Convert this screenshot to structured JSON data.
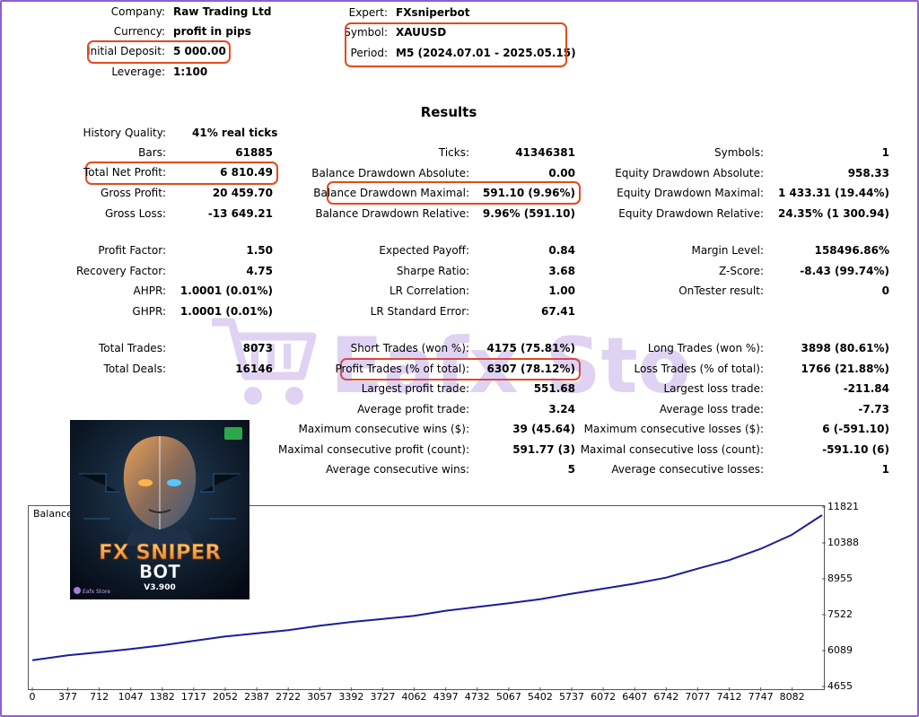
{
  "header": {
    "company_label": "Company:",
    "company": "Raw Trading Ltd",
    "currency_label": "Currency:",
    "currency": "profit in pips",
    "deposit_label": "Initial Deposit:",
    "deposit": "5 000.00",
    "leverage_label": "Leverage:",
    "leverage": "1:100",
    "expert_label": "Expert:",
    "expert": "FXsniperbot",
    "symbol_label": "Symbol:",
    "symbol": "XAUUSD",
    "period_label": "Period:",
    "period": "M5 (2024.07.01 - 2025.05.15)"
  },
  "results_title": "Results",
  "col1": [
    {
      "label": "History Quality:",
      "value": "41% real ticks"
    },
    {
      "label": "Bars:",
      "value": "61885"
    },
    {
      "label": "Total Net Profit:",
      "value": "6 810.49"
    },
    {
      "label": "Gross Profit:",
      "value": "20 459.70"
    },
    {
      "label": "Gross Loss:",
      "value": "-13 649.21"
    },
    {
      "label": "Profit Factor:",
      "value": "1.50"
    },
    {
      "label": "Recovery Factor:",
      "value": "4.75"
    },
    {
      "label": "AHPR:",
      "value": "1.0001 (0.01%)"
    },
    {
      "label": "GHPR:",
      "value": "1.0001 (0.01%)"
    },
    {
      "label": "Total Trades:",
      "value": "8073"
    },
    {
      "label": "Total Deals:",
      "value": "16146"
    }
  ],
  "col2": [
    {
      "label": "Ticks:",
      "value": "41346381"
    },
    {
      "label": "Balance Drawdown Absolute:",
      "value": "0.00"
    },
    {
      "label": "Balance Drawdown Maximal:",
      "value": "591.10 (9.96%)"
    },
    {
      "label": "Balance Drawdown Relative:",
      "value": "9.96% (591.10)"
    },
    {
      "label": "Expected Payoff:",
      "value": "0.84"
    },
    {
      "label": "Sharpe Ratio:",
      "value": "3.68"
    },
    {
      "label": "LR Correlation:",
      "value": "1.00"
    },
    {
      "label": "LR Standard Error:",
      "value": "67.41"
    },
    {
      "label": "Short Trades (won %):",
      "value": "4175 (75.81%)"
    },
    {
      "label": "Profit Trades (% of total):",
      "value": "6307 (78.12%)"
    },
    {
      "label": "Largest profit trade:",
      "value": "551.68"
    },
    {
      "label": "Average profit trade:",
      "value": "3.24"
    },
    {
      "label": "Maximum consecutive wins ($):",
      "value": "39 (45.64)"
    },
    {
      "label": "Maximal consecutive profit (count):",
      "value": "591.77 (3)"
    },
    {
      "label": "Average consecutive wins:",
      "value": "5"
    }
  ],
  "col3": [
    {
      "label": "Symbols:",
      "value": "1"
    },
    {
      "label": "Equity Drawdown Absolute:",
      "value": "958.33"
    },
    {
      "label": "Equity Drawdown Maximal:",
      "value": "1 433.31 (19.44%)"
    },
    {
      "label": "Equity Drawdown Relative:",
      "value": "24.35% (1 300.94)"
    },
    {
      "label": "Margin Level:",
      "value": "158496.86%"
    },
    {
      "label": "Z-Score:",
      "value": "-8.43 (99.74%)"
    },
    {
      "label": "OnTester result:",
      "value": "0"
    },
    {
      "label": "Long Trades (won %):",
      "value": "3898 (80.61%)"
    },
    {
      "label": "Loss Trades (% of total):",
      "value": "1766 (21.88%)"
    },
    {
      "label": "Largest loss trade:",
      "value": "-211.84"
    },
    {
      "label": "Average loss trade:",
      "value": "-7.73"
    },
    {
      "label": "Maximum consecutive losses ($):",
      "value": "6 (-591.10)"
    },
    {
      "label": "Maximal consecutive loss (count):",
      "value": "-591.10 (6)"
    },
    {
      "label": "Average consecutive losses:",
      "value": "1"
    }
  ],
  "watermark": {
    "text": "Eafx Store",
    "brand_color": "#a57be0"
  },
  "product_image": {
    "title_line1": "FX SNIPER",
    "title_line2": "BOT",
    "version": "V3.900",
    "logo_text": "Eafx Store",
    "accent_color": "#f0a020"
  },
  "chart_data": {
    "type": "line",
    "title": "Balance",
    "x_ticks": [
      0,
      377,
      712,
      1047,
      1382,
      1717,
      2052,
      2387,
      2722,
      3057,
      3392,
      3727,
      4062,
      4397,
      4732,
      5067,
      5402,
      5737,
      6072,
      6407,
      6742,
      7077,
      7412,
      7747,
      8082
    ],
    "y_ticks": [
      4655,
      6089,
      7522,
      8955,
      10388,
      11821
    ],
    "xlim": [
      0,
      8400
    ],
    "ylim": [
      4655,
      11821
    ],
    "series": [
      {
        "color": "#1c1c9c",
        "points": [
          [
            0,
            5700
          ],
          [
            377,
            5900
          ],
          [
            712,
            6020
          ],
          [
            1047,
            6150
          ],
          [
            1382,
            6300
          ],
          [
            1717,
            6480
          ],
          [
            2052,
            6650
          ],
          [
            2387,
            6780
          ],
          [
            2722,
            6900
          ],
          [
            3057,
            7080
          ],
          [
            3392,
            7230
          ],
          [
            3727,
            7350
          ],
          [
            4062,
            7480
          ],
          [
            4397,
            7680
          ],
          [
            4732,
            7830
          ],
          [
            5067,
            7980
          ],
          [
            5402,
            8140
          ],
          [
            5737,
            8360
          ],
          [
            6072,
            8560
          ],
          [
            6407,
            8760
          ],
          [
            6742,
            9000
          ],
          [
            7077,
            9360
          ],
          [
            7412,
            9700
          ],
          [
            7747,
            10150
          ],
          [
            8073,
            10700
          ],
          [
            8400,
            11500
          ]
        ]
      }
    ]
  }
}
